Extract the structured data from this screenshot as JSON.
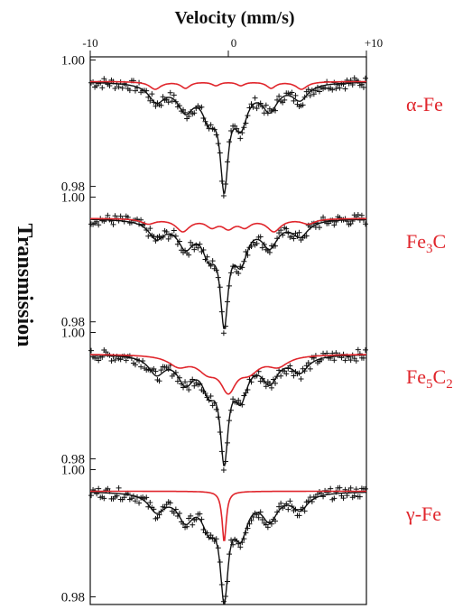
{
  "chart_data": {
    "type": "scatter",
    "title": "Velocity (mm/s)",
    "ylabel": "Transmission",
    "x_ticks": [
      "-10",
      "0",
      "+10"
    ],
    "xlim": [
      -10,
      10
    ],
    "colors": {
      "data": "#111111",
      "fit": "#111111",
      "component": "#e0262c"
    },
    "panels": [
      {
        "label_main": "α-Fe",
        "label_sub": "",
        "y_top": "1.00",
        "y_bottom": "0.98",
        "baseline": 0.9966,
        "ylim": [
          0.9788,
          1.0005
        ],
        "dip_depth": 0.0155,
        "component_lines": [
          [
            -5.3,
            0.0012,
            0.5
          ],
          [
            -3.1,
            0.001,
            0.4
          ],
          [
            -0.9,
            0.0006,
            0.35
          ],
          [
            0.9,
            0.0006,
            0.35
          ],
          [
            3.1,
            0.001,
            0.4
          ],
          [
            5.3,
            0.0012,
            0.5
          ]
        ]
      },
      {
        "label_main": "Fe",
        "label_sub": "3",
        "label_tail": "C",
        "y_top": "1.00",
        "y_bottom": "0.98",
        "baseline": 0.9966,
        "ylim": [
          0.9788,
          1.0005
        ],
        "dip_depth": 0.0155,
        "component_lines": [
          [
            -5.8,
            0.0008,
            0.6
          ],
          [
            -3.3,
            0.002,
            0.6
          ],
          [
            -1.2,
            0.0012,
            0.5
          ],
          [
            0.0,
            0.0014,
            0.5
          ],
          [
            1.2,
            0.0012,
            0.5
          ],
          [
            3.3,
            0.002,
            0.6
          ],
          [
            5.8,
            0.0008,
            0.6
          ]
        ]
      },
      {
        "label_main": "Fe",
        "label_sub": "5",
        "label_tail": "C",
        "label_sub2": "2",
        "y_top": "1.00",
        "y_bottom": "0.98",
        "baseline": 0.9966,
        "ylim": [
          0.9788,
          1.0005
        ],
        "dip_depth": 0.0155,
        "component_lines": [
          [
            -3.6,
            0.0016,
            0.9
          ],
          [
            -1.5,
            0.0022,
            0.9
          ],
          [
            0.0,
            0.005,
            0.7
          ],
          [
            1.5,
            0.0022,
            0.9
          ],
          [
            3.6,
            0.0016,
            0.9
          ]
        ]
      },
      {
        "label_main": "γ-Fe",
        "label_sub": "",
        "y_top": "1.00",
        "y_bottom": "0.98",
        "baseline": 0.9966,
        "ylim": [
          0.9788,
          1.0005
        ],
        "dip_depth": 0.0155,
        "component_lines": [
          [
            -0.3,
            0.008,
            0.18
          ]
        ]
      }
    ],
    "spectrum_lines": [
      [
        -5.2,
        0.0028,
        0.7
      ],
      [
        -3.1,
        0.004,
        0.7
      ],
      [
        -1.4,
        0.0048,
        0.6
      ],
      [
        -0.3,
        0.015,
        0.35
      ],
      [
        0.9,
        0.006,
        0.6
      ],
      [
        3.0,
        0.004,
        0.7
      ],
      [
        5.2,
        0.0025,
        0.7
      ]
    ]
  }
}
